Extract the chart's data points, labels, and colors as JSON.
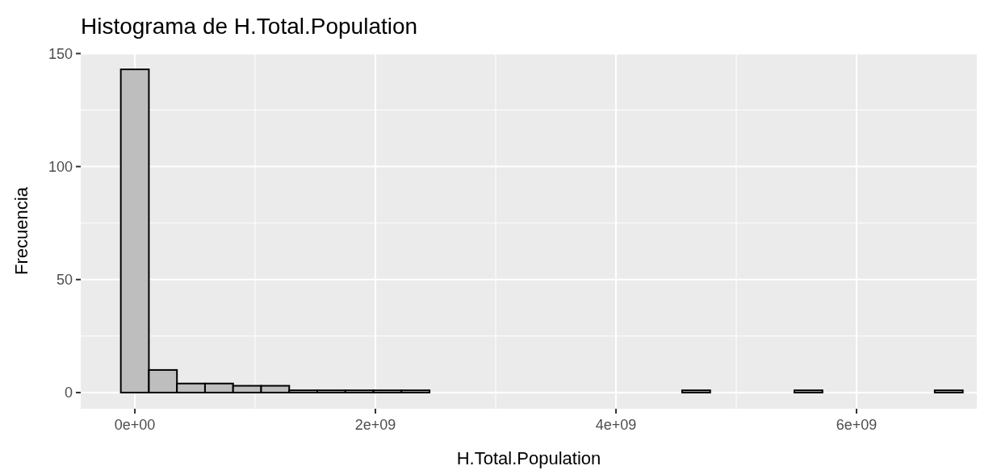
{
  "chart_data": {
    "type": "histogram",
    "title": "Histograma de H.Total.Population",
    "xlabel": "H.Total.Population",
    "ylabel": "Frecuencia",
    "bins": [
      -116666667,
      116666667,
      350000000,
      583333333,
      816666667,
      1050000000,
      1283333333,
      1516666667,
      1750000000,
      1983333333,
      2216666667,
      2450000000,
      2683333333,
      2916666667,
      3150000000,
      3383333333,
      3616666667,
      3850000000,
      4083333333,
      4316666667,
      4550000000,
      4783333333,
      5016666667,
      5250000000,
      5483333333,
      5716666667,
      5950000000,
      6183333333,
      6416666667,
      6650000000,
      6883333333
    ],
    "values": [
      143,
      10,
      4,
      4,
      3,
      3,
      1,
      1,
      1,
      1,
      1,
      0,
      0,
      0,
      0,
      0,
      0,
      0,
      0,
      0,
      1,
      0,
      0,
      0,
      1,
      0,
      0,
      0,
      0,
      1
    ],
    "color": "#bebebe",
    "xlim": [
      -450000000,
      7000000000
    ],
    "xticks": [
      {
        "value": 0,
        "label": "0e+00"
      },
      {
        "value": 2000000000,
        "label": "2e+09"
      },
      {
        "value": 4000000000,
        "label": "4e+09"
      },
      {
        "value": 6000000000,
        "label": "6e+09"
      }
    ],
    "ylim": [
      -7.15,
      150.15
    ],
    "yticks": [
      0,
      50,
      100,
      150
    ],
    "grid": true
  }
}
